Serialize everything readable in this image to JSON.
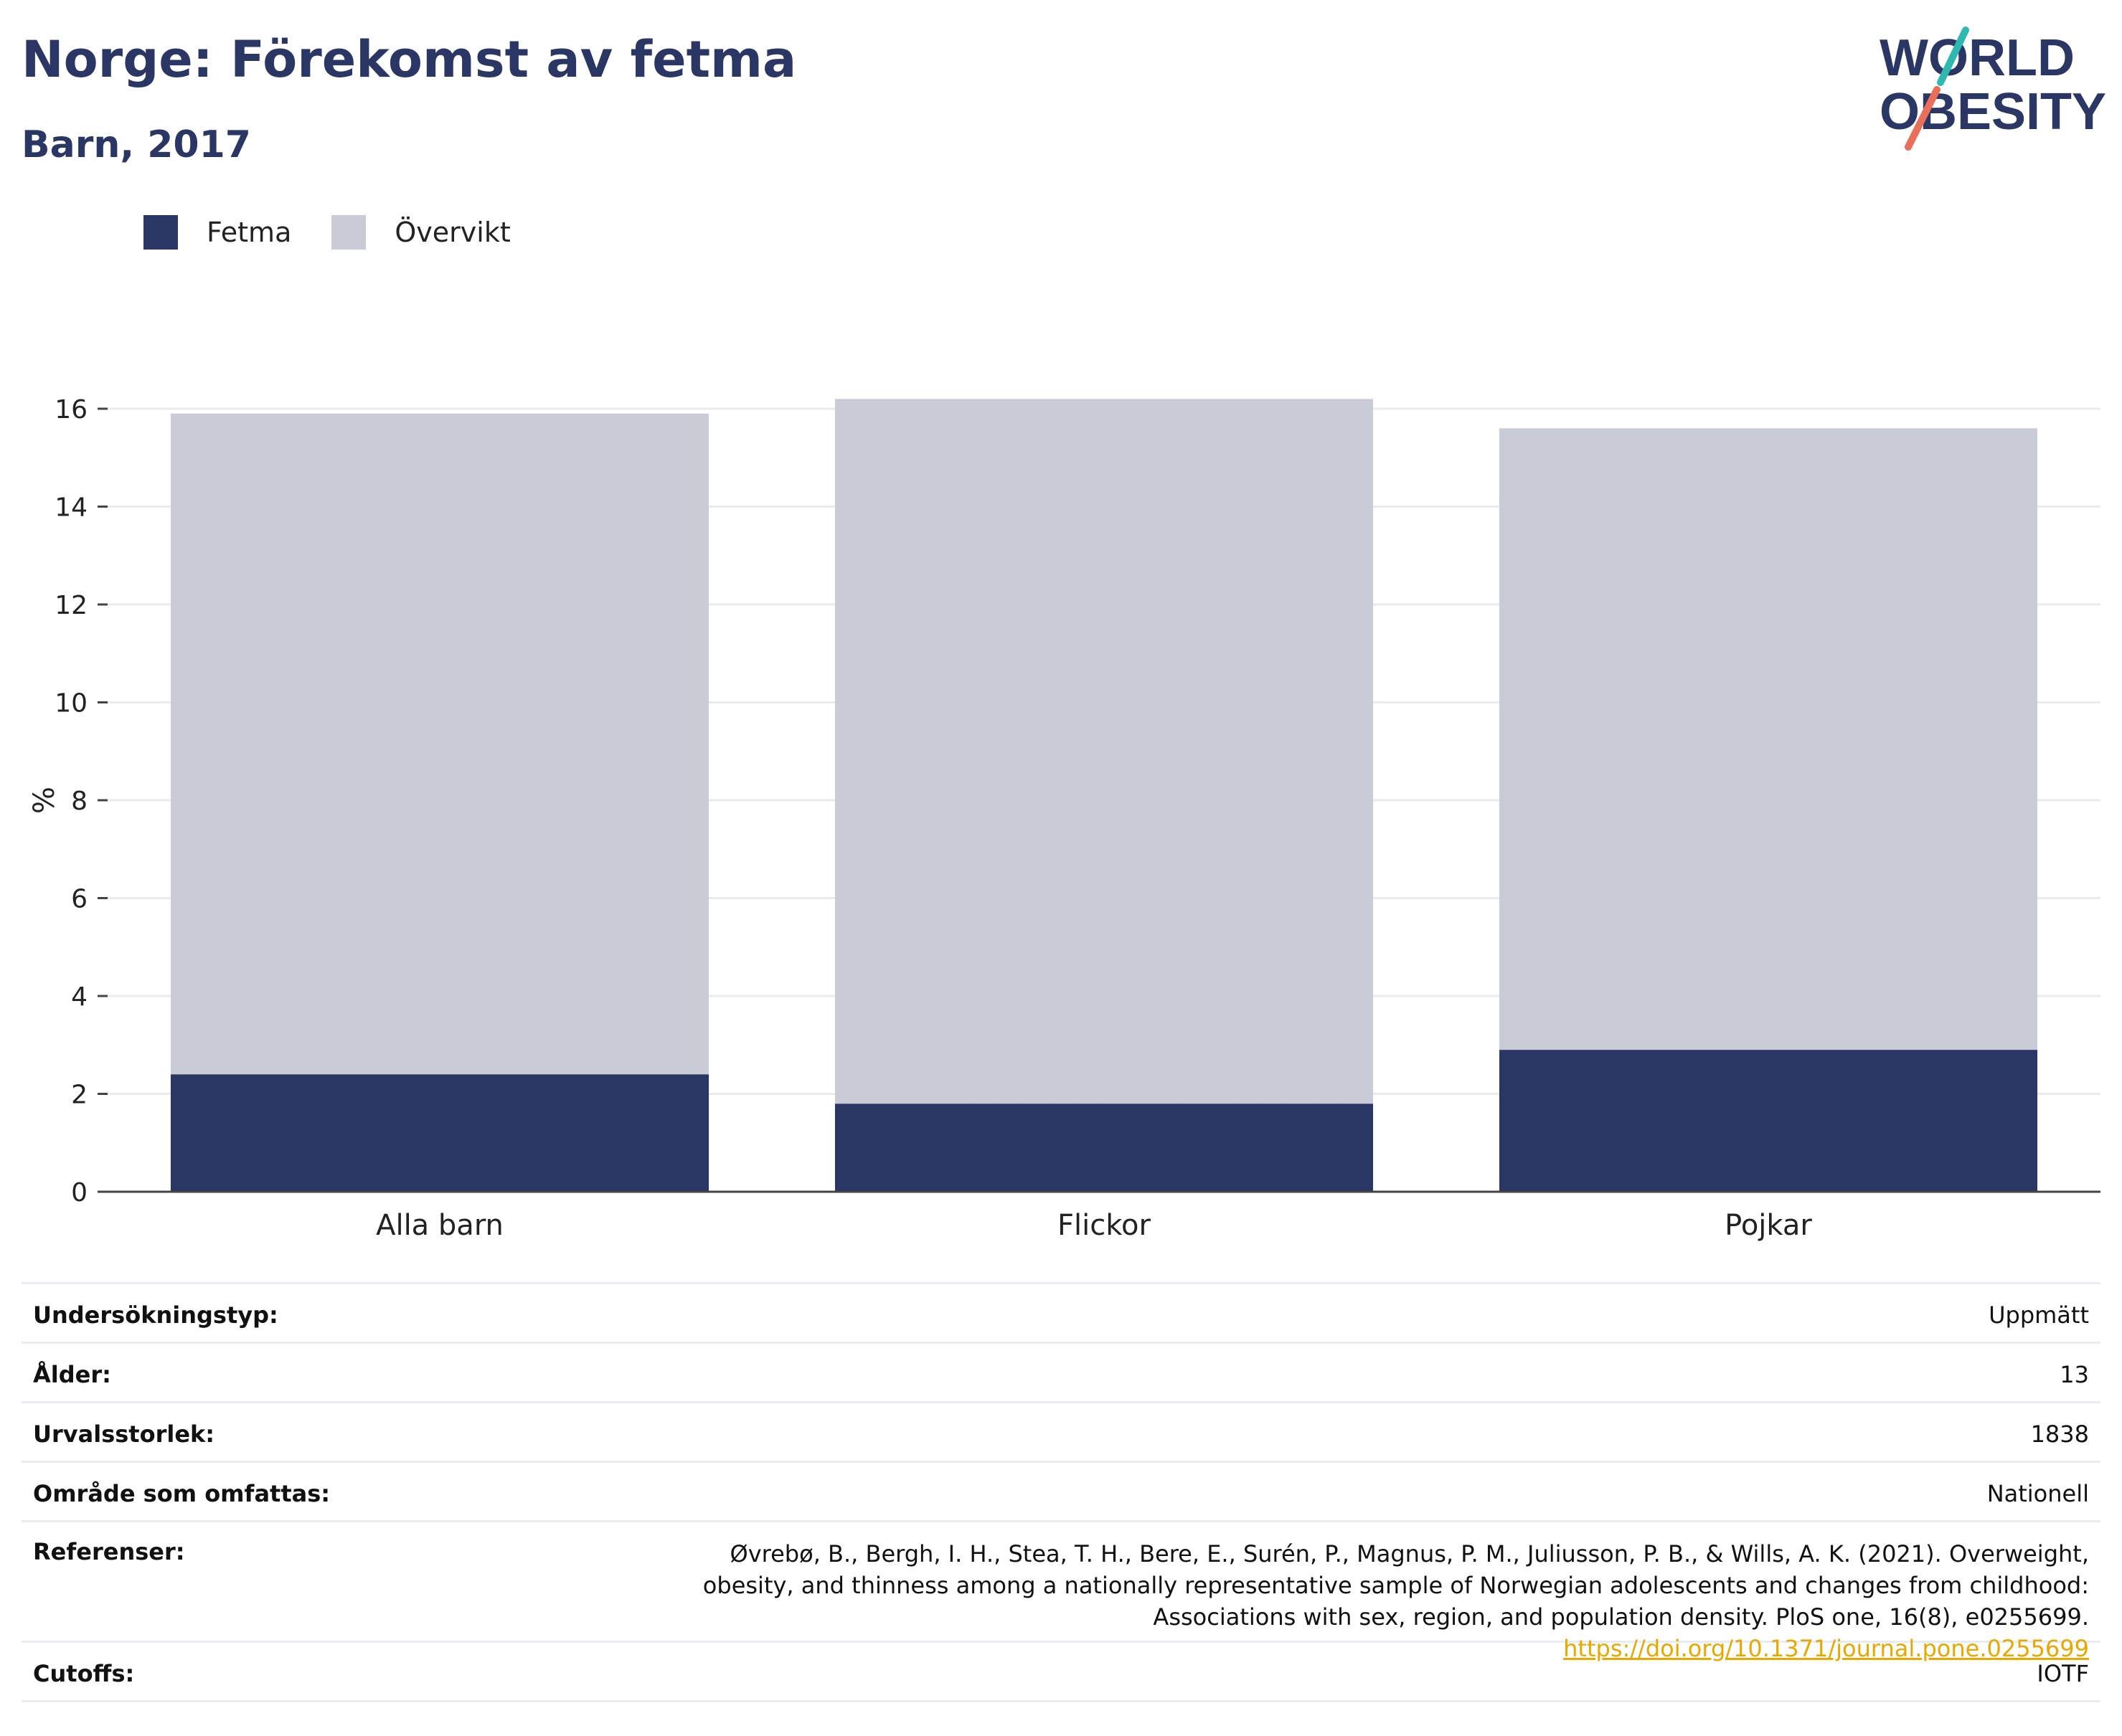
{
  "header": {
    "title": "Norge: Förekomst av fetma",
    "subtitle": "Barn, 2017"
  },
  "logo": {
    "line1": "WORLD",
    "line2": "OBESITY"
  },
  "legend": [
    {
      "label": "Fetma",
      "color": "#2a3664"
    },
    {
      "label": "Övervikt",
      "color": "#c9cbd7"
    }
  ],
  "chart_data": {
    "type": "bar",
    "stacked": true,
    "categories": [
      "Alla barn",
      "Flickor",
      "Pojkar"
    ],
    "series": [
      {
        "name": "Fetma",
        "color": "#2a3664",
        "values": [
          2.4,
          1.8,
          2.9
        ]
      },
      {
        "name": "Övervikt",
        "color": "#c9cbd7",
        "values": [
          13.5,
          14.4,
          12.7
        ]
      }
    ],
    "title": "Norge: Förekomst av fetma",
    "subtitle": "Barn, 2017",
    "xlabel": "",
    "ylabel": "%",
    "ylim": [
      0,
      16
    ],
    "yticks": [
      0,
      2,
      4,
      6,
      8,
      10,
      12,
      14,
      16
    ],
    "grid": true,
    "legend_position": "top-left"
  },
  "info": {
    "survey_type": {
      "label": "Undersökningstyp:",
      "value": "Uppmätt"
    },
    "age": {
      "label": "Ålder:",
      "value": "13"
    },
    "sample_size": {
      "label": "Urvalsstorlek:",
      "value": "1838"
    },
    "area": {
      "label": "Område som omfattas:",
      "value": "Nationell"
    },
    "references": {
      "label": "Referenser:",
      "text": "Øvrebø, B., Bergh, I. H., Stea, T. H., Bere, E., Surén, P., Magnus, P. M., Juliusson, P. B., & Wills, A. K. (2021). Overweight, obesity, and thinness among a nationally representative sample of Norwegian adolescents and changes from childhood: Associations with sex, region, and population density. PloS one, 16(8), e0255699.",
      "link": "https://doi.org/10.1371/journal.pone.0255699"
    },
    "cutoffs": {
      "label": "Cutoffs:",
      "value": "IOTF"
    }
  }
}
